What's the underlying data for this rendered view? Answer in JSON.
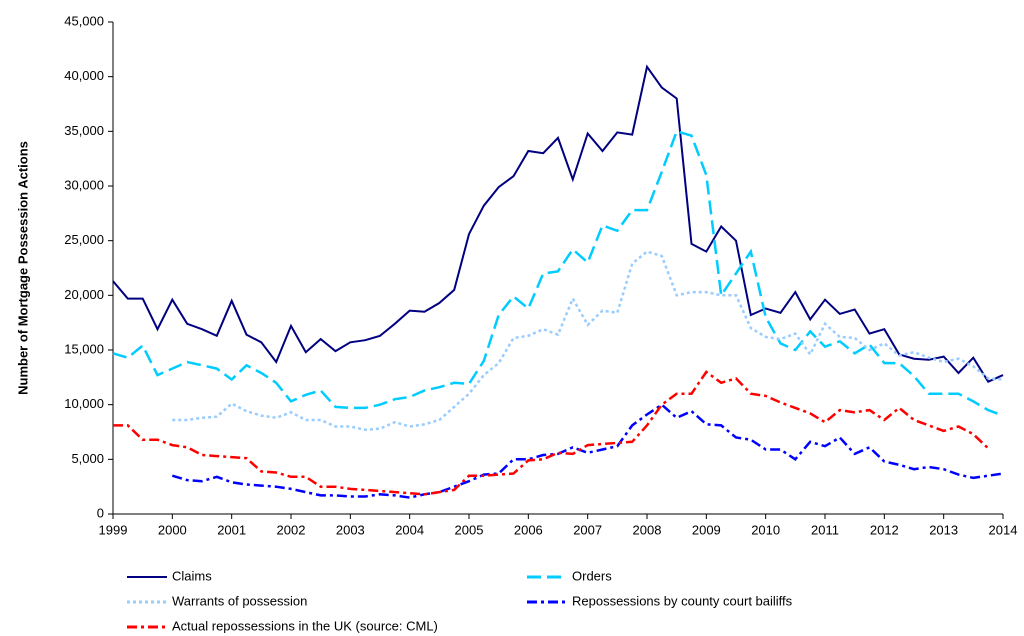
{
  "chart_data": {
    "type": "line",
    "y_label": "Number of Mortgage Possession Actions",
    "categories": [
      "1999",
      null,
      null,
      null,
      "2000",
      null,
      null,
      null,
      "2001",
      null,
      null,
      null,
      "2002",
      null,
      null,
      null,
      "2003",
      null,
      null,
      null,
      "2004",
      null,
      null,
      null,
      "2005",
      null,
      null,
      null,
      "2006",
      null,
      null,
      null,
      "2007",
      null,
      null,
      null,
      "2008",
      null,
      null,
      null,
      "2009",
      null,
      null,
      null,
      "2010",
      null,
      null,
      null,
      "2011",
      null,
      null,
      null,
      "2012",
      null,
      null,
      null,
      "2013",
      null,
      null,
      null,
      "2014"
    ],
    "ylim": [
      0,
      45000
    ],
    "yticks": [
      0,
      {
        "value": 5000,
        "label": "5,000"
      },
      {
        "value": 10000,
        "label": "10,000"
      },
      {
        "value": 15000,
        "label": "15,000"
      },
      {
        "value": 20000,
        "label": "20,000"
      },
      {
        "value": 25000,
        "label": "25,000"
      },
      {
        "value": 30000,
        "label": "30,000"
      },
      {
        "value": 35000,
        "label": "35,000"
      },
      {
        "value": 40000,
        "label": "40,000"
      },
      {
        "value": 45000,
        "label": "45,000"
      }
    ],
    "legend": "bottom",
    "series": [
      {
        "name": "Claims",
        "color": "#000080",
        "style": "solid",
        "values": [
          21300,
          19700,
          19700,
          16900,
          19600,
          17400,
          16900,
          16300,
          19500,
          16400,
          15700,
          13900,
          17200,
          14800,
          16000,
          14900,
          15700,
          15900,
          16300,
          17400,
          18600,
          18500,
          19300,
          20500,
          25600,
          28200,
          29900,
          30900,
          33200,
          33000,
          34400,
          30600,
          34800,
          33200,
          34900,
          34700,
          40900,
          39000,
          38000,
          24700,
          24000,
          26300,
          25000,
          18200,
          18800,
          18400,
          20300,
          17800,
          19600,
          18300,
          18700,
          16500,
          16900,
          14600,
          14200,
          14100,
          14400,
          12900,
          14300,
          12100,
          12700
        ]
      },
      {
        "name": "Orders",
        "color": "#00ccff",
        "style": "dashed",
        "values": [
          14700,
          14300,
          15400,
          12700,
          13300,
          13900,
          13600,
          13300,
          12300,
          13600,
          12900,
          12000,
          10300,
          10900,
          11300,
          9800,
          9700,
          9700,
          10000,
          10500,
          10700,
          11300,
          11600,
          12000,
          11900,
          14000,
          18200,
          19900,
          18800,
          22000,
          22200,
          24200,
          23000,
          26400,
          25900,
          27800,
          27800,
          31300,
          35000,
          34600,
          31000,
          20000,
          22000,
          24000,
          18000,
          15600,
          15000,
          16700,
          15300,
          15800,
          14700,
          15500,
          13800,
          13800,
          12600,
          11000,
          11000,
          11000,
          10300,
          9500,
          9000
        ]
      },
      {
        "name": "Warrants of possession",
        "color": "#99ccff",
        "style": "dotted",
        "values": [
          null,
          null,
          null,
          null,
          8600,
          8600,
          8800,
          8900,
          10100,
          9400,
          9000,
          8800,
          9300,
          8600,
          8600,
          8000,
          8000,
          7700,
          7800,
          8400,
          8000,
          8200,
          8600,
          9800,
          11000,
          12700,
          13800,
          16100,
          16300,
          16900,
          16400,
          19700,
          17300,
          18600,
          18400,
          22900,
          24000,
          23600,
          20000,
          20300,
          20300,
          20000,
          20000,
          17000,
          16200,
          16000,
          16500,
          14600,
          17400,
          16200,
          16100,
          15000,
          15600,
          14500,
          14800,
          14300,
          13900,
          14200,
          13500,
          12400,
          12300
        ]
      },
      {
        "name": "Repossessions by county court bailiffs",
        "color": "#0000ff",
        "style": "dashdot",
        "values": [
          null,
          null,
          null,
          null,
          3500,
          3100,
          3000,
          3400,
          2900,
          2700,
          2600,
          2500,
          2300,
          2000,
          1700,
          1700,
          1600,
          1600,
          1800,
          1700,
          1500,
          1800,
          2000,
          2500,
          3000,
          3600,
          3700,
          5000,
          5000,
          5400,
          5500,
          6100,
          5600,
          5900,
          6200,
          8100,
          9100,
          10000,
          8800,
          9400,
          8200,
          8100,
          7000,
          6800,
          5900,
          5900,
          5000,
          6600,
          6200,
          7000,
          5500,
          6100,
          4800,
          4500,
          4100,
          4300,
          4100,
          3600,
          3300,
          3500,
          3700
        ]
      },
      {
        "name": "Actual repossessions in the UK (source: CML)",
        "color": "#ff0000",
        "style": "dashdot",
        "values": [
          8100,
          8100,
          6800,
          6800,
          6300,
          6100,
          5400,
          5300,
          5200,
          5100,
          3900,
          3800,
          3400,
          3400,
          2500,
          2500,
          2300,
          2200,
          2100,
          2000,
          1900,
          1800,
          2000,
          2200,
          3500,
          3500,
          3600,
          3700,
          4900,
          5000,
          5600,
          5500,
          6300,
          6400,
          6500,
          6600,
          8100,
          10000,
          11000,
          11000,
          13000,
          12000,
          12400,
          11000,
          10800,
          10200,
          9700,
          9200,
          8400,
          9500,
          9300,
          9500,
          8600,
          9700,
          8600,
          8100,
          7600,
          8000,
          7300,
          6000,
          null
        ]
      }
    ]
  }
}
